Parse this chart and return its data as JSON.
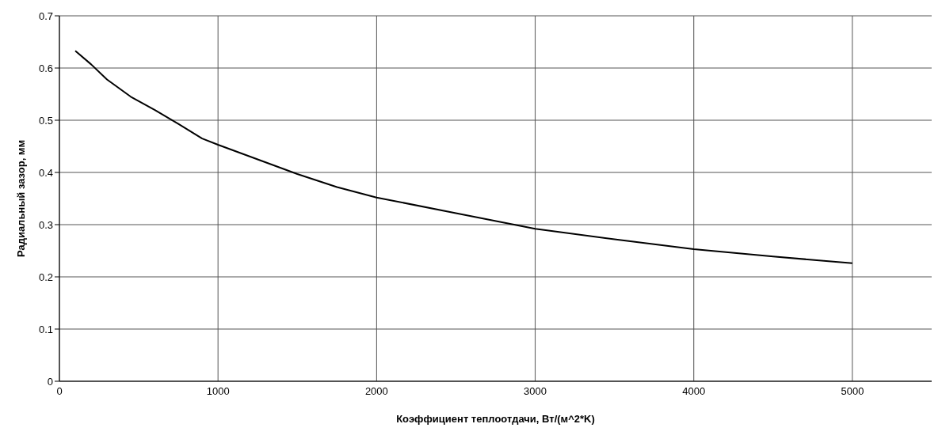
{
  "chart_data": {
    "type": "line",
    "xlabel": "Коэффициент теплоотдачи, Вт/(м^2*K)",
    "ylabel": "Радиальный зазор, мм",
    "x": [
      100,
      200,
      300,
      450,
      600,
      750,
      900,
      1000,
      1250,
      1500,
      1750,
      2000,
      2500,
      3000,
      3500,
      4000,
      4500,
      5000
    ],
    "series": [
      {
        "color": "#000000",
        "values": [
          0.633,
          0.607,
          0.578,
          0.545,
          0.52,
          0.493,
          0.465,
          0.453,
          0.425,
          0.397,
          0.372,
          0.352,
          0.322,
          0.292,
          0.272,
          0.253,
          0.239,
          0.226
        ]
      }
    ],
    "xlim": [
      0,
      5500
    ],
    "xticks": [
      0,
      1000,
      2000,
      3000,
      4000,
      5000
    ],
    "ylim": [
      0,
      0.7
    ],
    "yticks": [
      0,
      0.1,
      0.2,
      0.3,
      0.4,
      0.5,
      0.6,
      0.7
    ],
    "grid": true,
    "legend": false,
    "marker": "none",
    "line_style": "solid"
  }
}
